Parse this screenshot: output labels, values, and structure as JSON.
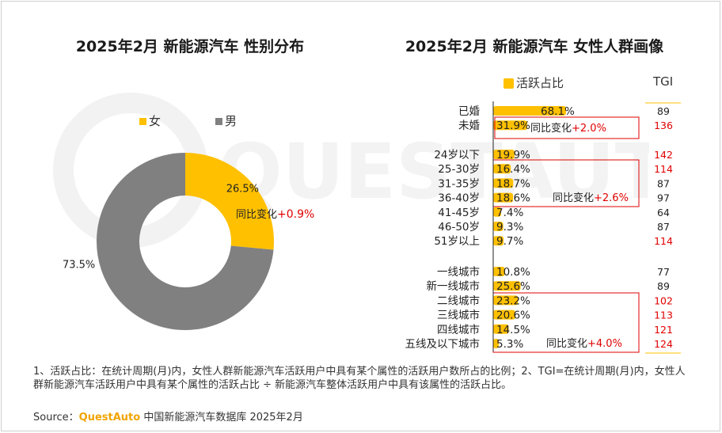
{
  "watermark": "QUESTAUTO",
  "left_chart": {
    "title": "2025年2月 新能源汽车 性别分布",
    "legend": [
      "女",
      "男"
    ],
    "slices": [
      {
        "label": "女",
        "value": 26.5,
        "text": "26.5%",
        "color": "#ffc000"
      },
      {
        "label": "男",
        "value": 73.5,
        "text": "73.5%",
        "color": "#808080"
      }
    ],
    "yoy_prefix": "同比变化",
    "yoy_value": "+0.9%"
  },
  "right_chart": {
    "title": "2025年2月 新能源汽车 女性人群画像",
    "legend": "活跃占比",
    "tgi_header": "TGI",
    "groups": [
      {
        "annotation_prefix": "同比变化",
        "annotation_value": "+2.0%",
        "rows": [
          {
            "label": "已婚",
            "value": 68.1,
            "text": "68.1%",
            "tgi": "89",
            "tgi_high": false
          },
          {
            "label": "未婚",
            "value": 31.9,
            "text": "31.9%",
            "tgi": "136",
            "tgi_high": true
          }
        ]
      },
      {
        "annotation_prefix": "同比变化",
        "annotation_value": "+2.6%",
        "rows": [
          {
            "label": "24岁以下",
            "value": 19.9,
            "text": "19.9%",
            "tgi": "142",
            "tgi_high": true
          },
          {
            "label": "25-30岁",
            "value": 16.4,
            "text": "16.4%",
            "tgi": "114",
            "tgi_high": true
          },
          {
            "label": "31-35岁",
            "value": 18.7,
            "text": "18.7%",
            "tgi": "87",
            "tgi_high": false
          },
          {
            "label": "36-40岁",
            "value": 18.6,
            "text": "18.6%",
            "tgi": "97",
            "tgi_high": false
          },
          {
            "label": "41-45岁",
            "value": 7.4,
            "text": "7.4%",
            "tgi": "64",
            "tgi_high": false
          },
          {
            "label": "46-50岁",
            "value": 9.3,
            "text": "9.3%",
            "tgi": "87",
            "tgi_high": false
          },
          {
            "label": "51岁以上",
            "value": 9.7,
            "text": "9.7%",
            "tgi": "114",
            "tgi_high": true
          }
        ]
      },
      {
        "annotation_prefix": "同比变化",
        "annotation_value": "+4.0%",
        "rows": [
          {
            "label": "一线城市",
            "value": 10.8,
            "text": "10.8%",
            "tgi": "77",
            "tgi_high": false
          },
          {
            "label": "新一线城市",
            "value": 25.6,
            "text": "25.6%",
            "tgi": "89",
            "tgi_high": false
          },
          {
            "label": "二线城市",
            "value": 23.2,
            "text": "23.2%",
            "tgi": "102",
            "tgi_high": true
          },
          {
            "label": "三线城市",
            "value": 20.6,
            "text": "20.6%",
            "tgi": "113",
            "tgi_high": true
          },
          {
            "label": "四线城市",
            "value": 14.5,
            "text": "14.5%",
            "tgi": "121",
            "tgi_high": true
          },
          {
            "label": "五线及以下城市",
            "value": 5.3,
            "text": "5.3%",
            "tgi": "124",
            "tgi_high": true
          }
        ]
      }
    ]
  },
  "note": "1、活跃占比：在统计周期(月)内，女性人群新能源汽车活跃用户中具有某个属性的活跃用户数所占的比例；2、TGI=在统计周期(月)内，女性人群新能源汽车活跃用户中具有某个属性的活跃占比 ÷ 新能源汽车整体活跃用户中具有该属性的活跃占比。",
  "source_prefix": "Source：",
  "source_brand": "QuestAuto",
  "source_rest": " 中国新能源汽车数据库 2025年2月",
  "colors": {
    "accent": "#ffc000",
    "male": "#808080",
    "highlight": "#e00000"
  },
  "chart_data": [
    {
      "type": "pie",
      "title": "2025年2月 新能源汽车 性别分布",
      "categories": [
        "女",
        "男"
      ],
      "values": [
        26.5,
        73.5
      ],
      "annotations": [
        "同比变化+0.9%"
      ]
    },
    {
      "type": "bar",
      "orientation": "horizontal",
      "title": "2025年2月 新能源汽车 女性人群画像",
      "categories": [
        "已婚",
        "未婚",
        "24岁以下",
        "25-30岁",
        "31-35岁",
        "36-40岁",
        "41-45岁",
        "46-50岁",
        "51岁以上",
        "一线城市",
        "新一线城市",
        "二线城市",
        "三线城市",
        "四线城市",
        "五线及以下城市"
      ],
      "series": [
        {
          "name": "活跃占比",
          "values": [
            68.1,
            31.9,
            19.9,
            16.4,
            18.7,
            18.6,
            7.4,
            9.3,
            9.7,
            10.8,
            25.6,
            23.2,
            20.6,
            14.5,
            5.3
          ]
        },
        {
          "name": "TGI",
          "values": [
            89,
            136,
            142,
            114,
            87,
            97,
            64,
            87,
            114,
            77,
            89,
            102,
            113,
            121,
            124
          ]
        }
      ],
      "annotations": [
        "同比变化+2.0%",
        "同比变化+2.6%",
        "同比变化+4.0%"
      ]
    }
  ]
}
